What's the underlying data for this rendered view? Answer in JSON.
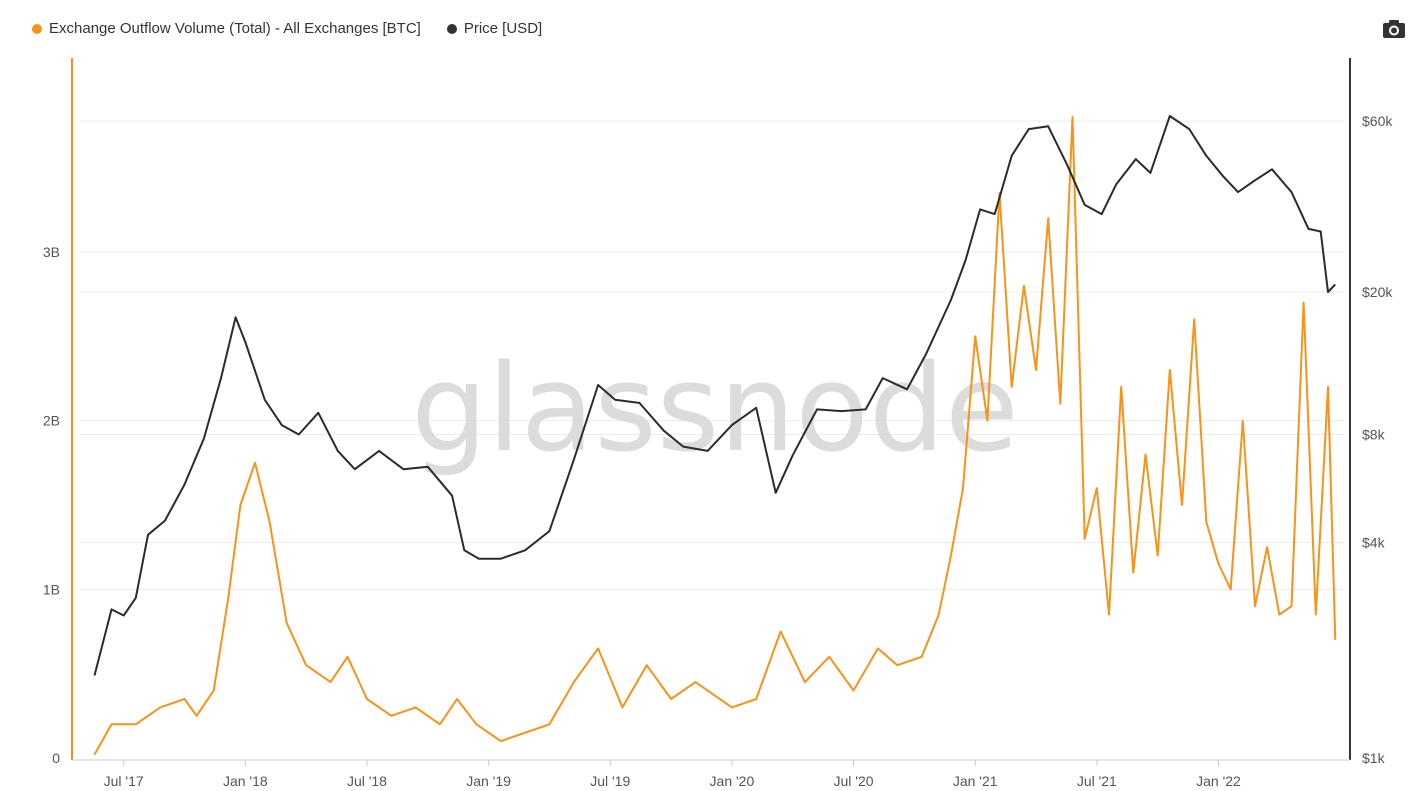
{
  "legend": {
    "outflow_label": "Exchange Outflow Volume (Total) - All Exchanges [BTC]",
    "price_label": "Price [USD]"
  },
  "colors": {
    "outflow": "#f7931a",
    "price": "#2b2b2b",
    "grid": "#ececec",
    "axis_left": "#f7931a",
    "axis_right": "#333333"
  },
  "icons": {
    "camera": "camera-icon"
  },
  "watermark": "glassnode",
  "chart_data": {
    "type": "line",
    "x_ticks": [
      "Jul '17",
      "Jan '18",
      "Jul '18",
      "Jan '19",
      "Jul '19",
      "Jan '20",
      "Jul '20",
      "Jan '21",
      "Jul '21",
      "Jan '22"
    ],
    "x_range": [
      "2017-05",
      "2022-07"
    ],
    "y_left": {
      "ticks": [
        "0",
        "1B",
        "2B",
        "3B"
      ],
      "range": [
        0,
        4.15
      ],
      "unit": "B"
    },
    "y_right": {
      "ticks": [
        "$1k",
        "$4k",
        "$8k",
        "$20k",
        "$60k"
      ],
      "tick_values": [
        1000,
        4000,
        8000,
        20000,
        60000
      ],
      "scale": "log",
      "range": [
        1000,
        90000
      ]
    },
    "grid": true,
    "legend_position": "top-left",
    "series": [
      {
        "name": "Exchange Outflow Volume (Total) - All Exchanges [BTC]",
        "axis": "left",
        "points": [
          [
            2017.38,
            0.02
          ],
          [
            2017.45,
            0.2
          ],
          [
            2017.55,
            0.2
          ],
          [
            2017.65,
            0.3
          ],
          [
            2017.75,
            0.35
          ],
          [
            2017.8,
            0.25
          ],
          [
            2017.87,
            0.4
          ],
          [
            2017.93,
            0.95
          ],
          [
            2017.98,
            1.5
          ],
          [
            2018.04,
            1.75
          ],
          [
            2018.1,
            1.4
          ],
          [
            2018.17,
            0.8
          ],
          [
            2018.25,
            0.55
          ],
          [
            2018.35,
            0.45
          ],
          [
            2018.42,
            0.6
          ],
          [
            2018.5,
            0.35
          ],
          [
            2018.6,
            0.25
          ],
          [
            2018.7,
            0.3
          ],
          [
            2018.8,
            0.2
          ],
          [
            2018.87,
            0.35
          ],
          [
            2018.95,
            0.2
          ],
          [
            2019.05,
            0.1
          ],
          [
            2019.15,
            0.15
          ],
          [
            2019.25,
            0.2
          ],
          [
            2019.35,
            0.45
          ],
          [
            2019.45,
            0.65
          ],
          [
            2019.55,
            0.3
          ],
          [
            2019.65,
            0.55
          ],
          [
            2019.75,
            0.35
          ],
          [
            2019.85,
            0.45
          ],
          [
            2020.0,
            0.3
          ],
          [
            2020.1,
            0.35
          ],
          [
            2020.2,
            0.75
          ],
          [
            2020.3,
            0.45
          ],
          [
            2020.4,
            0.6
          ],
          [
            2020.5,
            0.4
          ],
          [
            2020.6,
            0.65
          ],
          [
            2020.68,
            0.55
          ],
          [
            2020.78,
            0.6
          ],
          [
            2020.85,
            0.85
          ],
          [
            2020.9,
            1.2
          ],
          [
            2020.95,
            1.6
          ],
          [
            2021.0,
            2.5
          ],
          [
            2021.05,
            2.0
          ],
          [
            2021.1,
            3.35
          ],
          [
            2021.15,
            2.2
          ],
          [
            2021.2,
            2.8
          ],
          [
            2021.25,
            2.3
          ],
          [
            2021.3,
            3.2
          ],
          [
            2021.35,
            2.1
          ],
          [
            2021.4,
            3.8
          ],
          [
            2021.45,
            1.3
          ],
          [
            2021.5,
            1.6
          ],
          [
            2021.55,
            0.85
          ],
          [
            2021.6,
            2.2
          ],
          [
            2021.65,
            1.1
          ],
          [
            2021.7,
            1.8
          ],
          [
            2021.75,
            1.2
          ],
          [
            2021.8,
            2.3
          ],
          [
            2021.85,
            1.5
          ],
          [
            2021.9,
            2.6
          ],
          [
            2021.95,
            1.4
          ],
          [
            2022.0,
            1.15
          ],
          [
            2022.05,
            1.0
          ],
          [
            2022.1,
            2.0
          ],
          [
            2022.15,
            0.9
          ],
          [
            2022.2,
            1.25
          ],
          [
            2022.25,
            0.85
          ],
          [
            2022.3,
            0.9
          ],
          [
            2022.35,
            2.7
          ],
          [
            2022.4,
            0.85
          ],
          [
            2022.45,
            2.2
          ],
          [
            2022.48,
            0.7
          ]
        ]
      },
      {
        "name": "Price [USD]",
        "axis": "right",
        "points": [
          [
            2017.38,
            1700
          ],
          [
            2017.45,
            2600
          ],
          [
            2017.5,
            2500
          ],
          [
            2017.55,
            2800
          ],
          [
            2017.6,
            4200
          ],
          [
            2017.67,
            4600
          ],
          [
            2017.75,
            5800
          ],
          [
            2017.83,
            7800
          ],
          [
            2017.9,
            11500
          ],
          [
            2017.96,
            17000
          ],
          [
            2018.0,
            14500
          ],
          [
            2018.08,
            10000
          ],
          [
            2018.15,
            8500
          ],
          [
            2018.22,
            8000
          ],
          [
            2018.3,
            9200
          ],
          [
            2018.38,
            7200
          ],
          [
            2018.45,
            6400
          ],
          [
            2018.55,
            7200
          ],
          [
            2018.65,
            6400
          ],
          [
            2018.75,
            6500
          ],
          [
            2018.85,
            5400
          ],
          [
            2018.9,
            3800
          ],
          [
            2018.96,
            3600
          ],
          [
            2019.05,
            3600
          ],
          [
            2019.15,
            3800
          ],
          [
            2019.25,
            4300
          ],
          [
            2019.35,
            6800
          ],
          [
            2019.45,
            11000
          ],
          [
            2019.52,
            10000
          ],
          [
            2019.62,
            9800
          ],
          [
            2019.72,
            8200
          ],
          [
            2019.8,
            7400
          ],
          [
            2019.9,
            7200
          ],
          [
            2020.0,
            8500
          ],
          [
            2020.1,
            9500
          ],
          [
            2020.18,
            5500
          ],
          [
            2020.25,
            7000
          ],
          [
            2020.35,
            9400
          ],
          [
            2020.45,
            9300
          ],
          [
            2020.55,
            9400
          ],
          [
            2020.62,
            11500
          ],
          [
            2020.72,
            10700
          ],
          [
            2020.8,
            13500
          ],
          [
            2020.9,
            19000
          ],
          [
            2020.96,
            24500
          ],
          [
            2021.02,
            34000
          ],
          [
            2021.08,
            33000
          ],
          [
            2021.15,
            48000
          ],
          [
            2021.22,
            57000
          ],
          [
            2021.3,
            58000
          ],
          [
            2021.38,
            45000
          ],
          [
            2021.45,
            35000
          ],
          [
            2021.52,
            33000
          ],
          [
            2021.58,
            40000
          ],
          [
            2021.66,
            47000
          ],
          [
            2021.72,
            43000
          ],
          [
            2021.8,
            62000
          ],
          [
            2021.88,
            57000
          ],
          [
            2021.95,
            48000
          ],
          [
            2022.02,
            42000
          ],
          [
            2022.08,
            38000
          ],
          [
            2022.15,
            41000
          ],
          [
            2022.22,
            44000
          ],
          [
            2022.3,
            38000
          ],
          [
            2022.37,
            30000
          ],
          [
            2022.42,
            29500
          ],
          [
            2022.45,
            20000
          ],
          [
            2022.48,
            21000
          ]
        ]
      }
    ]
  }
}
